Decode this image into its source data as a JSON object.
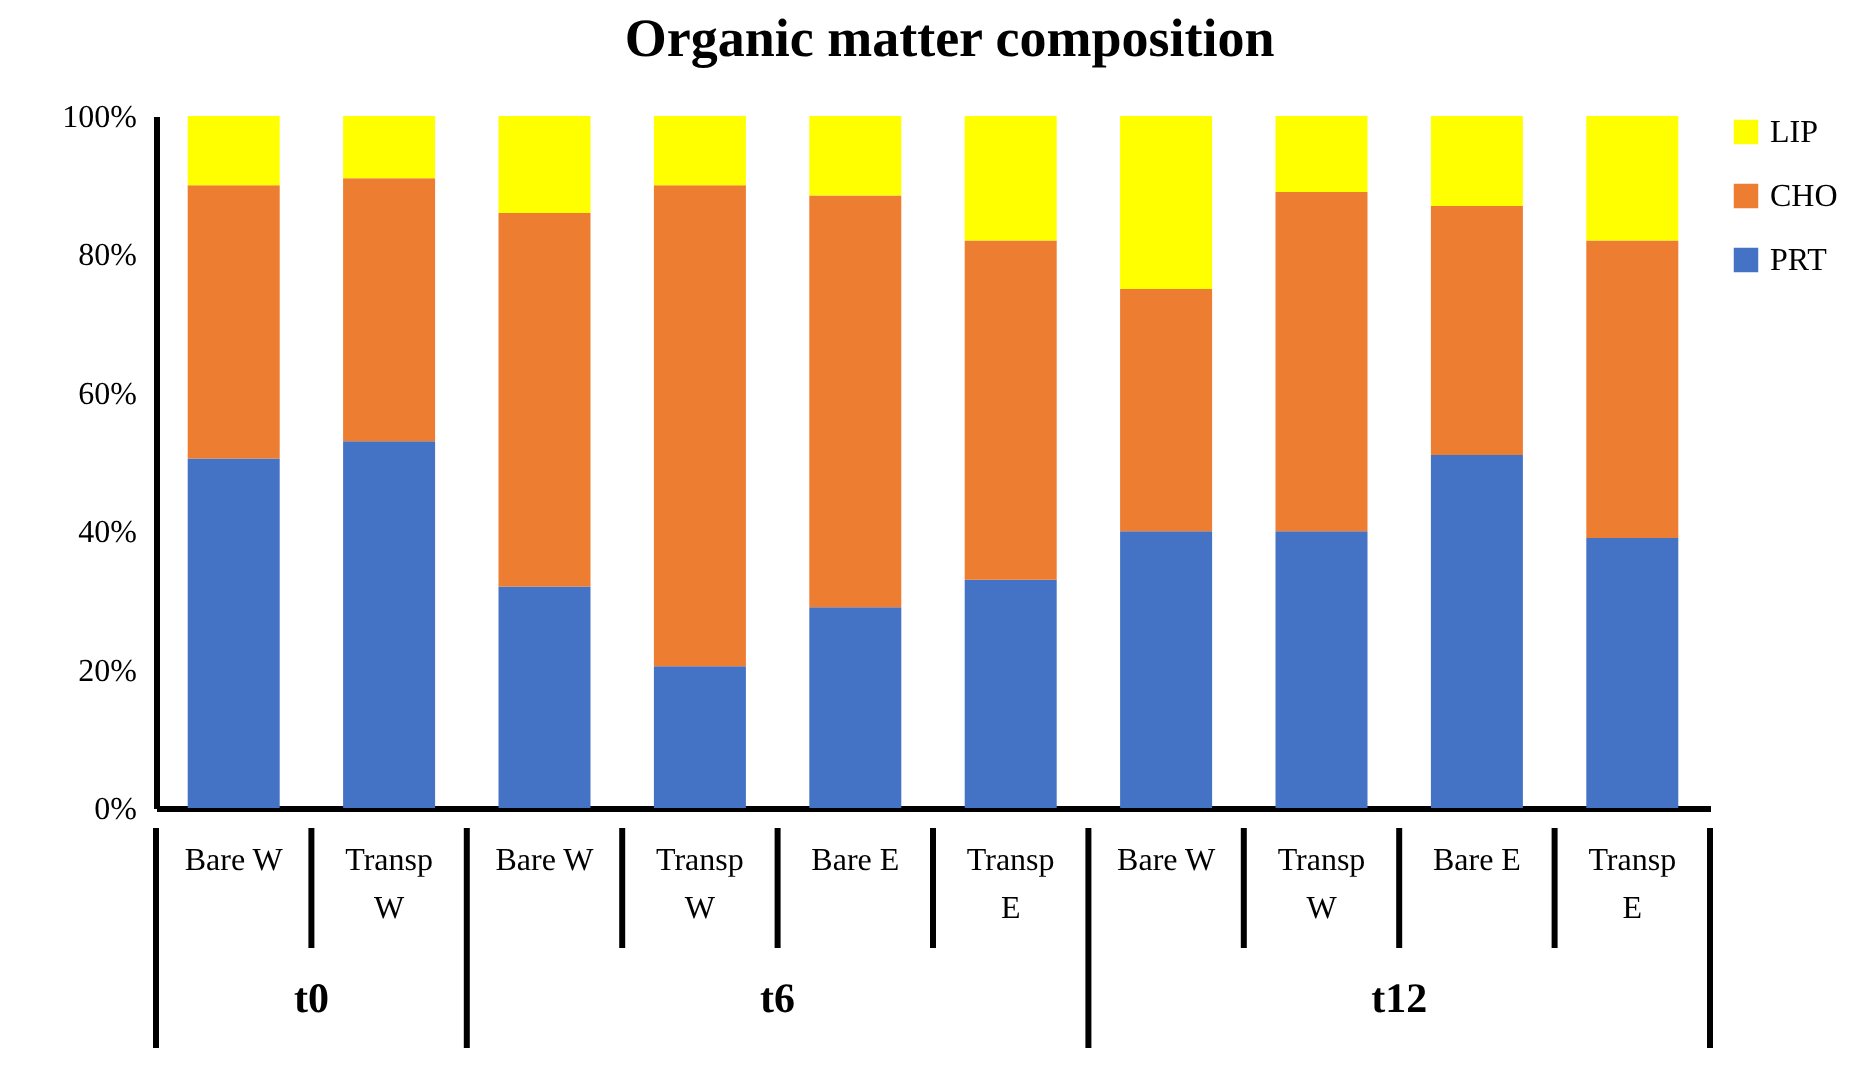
{
  "chart_data": {
    "type": "bar",
    "title": "Organic matter composition",
    "stacked": true,
    "categories": [
      "Bare W",
      "Transp W",
      "Bare W",
      "Transp W",
      "Bare E",
      "Transp E",
      "Bare W",
      "Transp W",
      "Bare E",
      "Transp E"
    ],
    "series": [
      {
        "name": "PRT",
        "color": "#4472c4",
        "values": [
          50.5,
          53,
          32,
          20.5,
          29,
          33,
          40,
          40,
          51,
          39
        ]
      },
      {
        "name": "CHO",
        "color": "#ed7d31",
        "values": [
          39.5,
          38,
          54,
          69.5,
          59.5,
          49,
          35,
          49,
          36,
          43
        ]
      },
      {
        "name": "LIP",
        "color": "#ffff00",
        "values": [
          10,
          9,
          14,
          10,
          11.5,
          18,
          25,
          11,
          13,
          18
        ]
      }
    ],
    "ylim": [
      0,
      100
    ],
    "yticks": [
      {
        "value": 0,
        "label": "0%"
      },
      {
        "value": 20,
        "label": "20%"
      },
      {
        "value": 40,
        "label": "40%"
      },
      {
        "value": 60,
        "label": "60%"
      },
      {
        "value": 80,
        "label": "80%"
      },
      {
        "value": 100,
        "label": "100%"
      }
    ],
    "annotations": [
      "t0",
      "t6",
      "t12"
    ],
    "legend": "right",
    "grid": false
  }
}
